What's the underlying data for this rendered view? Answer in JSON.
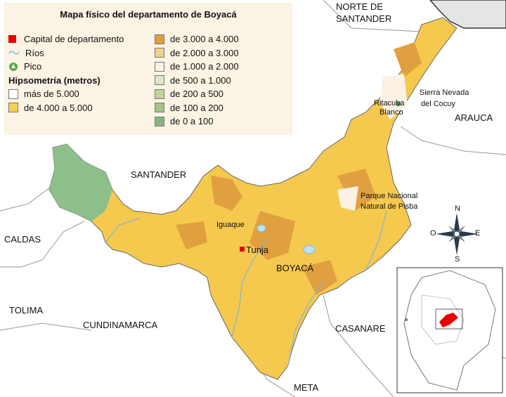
{
  "map": {
    "title": "Mapa físico del departamento de Boyacá",
    "legend_left": [
      {
        "label": "Capital de departamento",
        "symbol": "red-square-icon",
        "color": "#e60000"
      },
      {
        "label": "Ríos",
        "symbol": "river-line-icon",
        "color": "#7fb7d6"
      },
      {
        "label": "Pico",
        "symbol": "peak-triangle-icon",
        "color": "#5aa84a"
      },
      {
        "label": "Hipsometría (metros)",
        "symbol": "",
        "color": ""
      },
      {
        "label": "más de 5.000",
        "symbol": "swatch",
        "color": "#ffffff"
      },
      {
        "label": "de 4.000 a 5.000",
        "symbol": "swatch",
        "color": "#f5d256"
      }
    ],
    "legend_right": [
      {
        "label": "de 3.000 a 4.000",
        "color": "#e0a040"
      },
      {
        "label": "de 2.000 a 3.000",
        "color": "#f0d290"
      },
      {
        "label": "de 1.000 a 2.000",
        "color": "#fbf1e4"
      },
      {
        "label": "de 500 a 1.000",
        "color": "#dde8c6"
      },
      {
        "label": "de 200 a 500",
        "color": "#c2d49a"
      },
      {
        "label": "de 100 a 200",
        "color": "#a3c486"
      },
      {
        "label": "de 0 a 100",
        "color": "#84b77e"
      }
    ],
    "places": {
      "norte_de_santander": "NORTE DE SANTANDER",
      "santander": "SANTANDER",
      "arauca": "ARAUCA",
      "caldas": "CALDAS",
      "tolima": "TOLIMA",
      "cundinamarca": "CUNDINAMARCA",
      "casanare": "CASANARE",
      "meta": "META",
      "boyaca": "BOYACÁ",
      "tunja": "Tunja",
      "iguaque": "Iguaque",
      "sierra_nevada": "Sierra Nevada del Cocuy",
      "ritacuba": "Ritacuba Blanco",
      "pisba": "Parque Nacional Natural de Pisba"
    },
    "compass": {
      "n": "N",
      "s": "S",
      "e": "E",
      "o": "O"
    },
    "colors": {
      "land_main": "#f5c94e",
      "land_high": "#e0a040",
      "low_green": "#8dbf8a",
      "outside": "#ffffff",
      "border": "#888888"
    }
  }
}
